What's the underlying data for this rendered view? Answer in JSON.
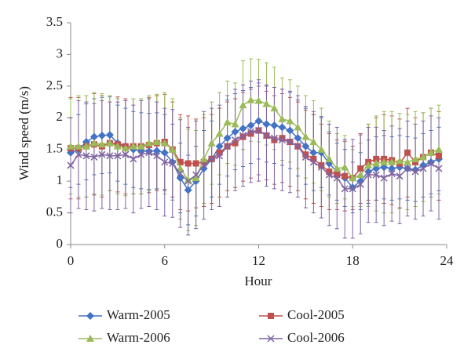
{
  "chart_data": {
    "type": "line",
    "xlabel": "Hour",
    "ylabel": "Wind speed (m/s)",
    "x": [
      0,
      0.5,
      1,
      1.5,
      2,
      2.5,
      3,
      3.5,
      4,
      4.5,
      5,
      5.5,
      6,
      6.5,
      7,
      7.5,
      8,
      8.5,
      9,
      9.5,
      10,
      10.5,
      11,
      11.5,
      12,
      12.5,
      13,
      13.5,
      14,
      14.5,
      15,
      15.5,
      16,
      16.5,
      17,
      17.5,
      18,
      18.5,
      19,
      19.5,
      20,
      20.5,
      21,
      21.5,
      22,
      22.5,
      23,
      23.5
    ],
    "xlim": [
      0,
      24
    ],
    "xticks": [
      0,
      6,
      12,
      18,
      24
    ],
    "ylim": [
      0,
      3.5
    ],
    "yticks": [
      0,
      0.5,
      1,
      1.5,
      2,
      2.5,
      3,
      3.5
    ],
    "grid": false,
    "legend": "bottom",
    "series": [
      {
        "name": "Warm-2005",
        "color": "#4472c4",
        "marker": "diamond",
        "values": [
          1.45,
          1.5,
          1.62,
          1.7,
          1.72,
          1.73,
          1.6,
          1.55,
          1.5,
          1.48,
          1.47,
          1.48,
          1.45,
          1.3,
          1.05,
          0.86,
          1.0,
          1.2,
          1.35,
          1.55,
          1.68,
          1.78,
          1.83,
          1.88,
          1.95,
          1.9,
          1.88,
          1.85,
          1.8,
          1.68,
          1.55,
          1.45,
          1.45,
          1.28,
          1.15,
          1.05,
          0.9,
          1.0,
          1.15,
          1.2,
          1.22,
          1.2,
          1.22,
          1.2,
          1.18,
          1.25,
          1.3,
          1.35
        ],
        "errors": [
          0.55,
          0.55,
          0.6,
          0.6,
          0.6,
          0.6,
          0.6,
          0.6,
          0.6,
          0.6,
          0.6,
          0.6,
          0.6,
          0.6,
          0.55,
          0.55,
          0.55,
          0.6,
          0.6,
          0.6,
          0.6,
          0.6,
          0.6,
          0.6,
          0.6,
          0.6,
          0.6,
          0.6,
          0.6,
          0.6,
          0.6,
          0.6,
          0.55,
          0.5,
          0.45,
          0.45,
          0.4,
          0.45,
          0.5,
          0.5,
          0.5,
          0.5,
          0.5,
          0.5,
          0.5,
          0.5,
          0.5,
          0.5
        ]
      },
      {
        "name": "Cool-2005",
        "color": "#c0504d",
        "marker": "square",
        "values": [
          1.52,
          1.52,
          1.55,
          1.58,
          1.55,
          1.6,
          1.58,
          1.55,
          1.55,
          1.55,
          1.57,
          1.6,
          1.62,
          1.5,
          1.3,
          1.28,
          1.28,
          1.3,
          1.35,
          1.45,
          1.55,
          1.6,
          1.7,
          1.75,
          1.8,
          1.72,
          1.65,
          1.68,
          1.62,
          1.55,
          1.42,
          1.35,
          1.25,
          1.15,
          1.1,
          1.08,
          1.05,
          1.2,
          1.3,
          1.35,
          1.35,
          1.33,
          1.28,
          1.45,
          1.3,
          1.38,
          1.45,
          1.4
        ],
        "errors": [
          0.8,
          0.8,
          0.8,
          0.8,
          0.8,
          0.75,
          0.75,
          0.75,
          0.75,
          0.75,
          0.75,
          0.75,
          0.75,
          0.75,
          0.75,
          0.75,
          0.7,
          0.7,
          0.7,
          0.7,
          0.7,
          0.7,
          0.7,
          0.7,
          0.7,
          0.7,
          0.7,
          0.7,
          0.7,
          0.7,
          0.7,
          0.7,
          0.65,
          0.6,
          0.55,
          0.55,
          0.5,
          0.55,
          0.6,
          0.65,
          0.7,
          0.7,
          0.7,
          0.7,
          0.7,
          0.7,
          0.7,
          0.7
        ]
      },
      {
        "name": "Warm-2006",
        "color": "#9bbb59",
        "marker": "triangle",
        "values": [
          1.55,
          1.55,
          1.55,
          1.6,
          1.58,
          1.6,
          1.55,
          1.52,
          1.55,
          1.55,
          1.6,
          1.62,
          1.6,
          1.5,
          1.2,
          1.02,
          1.05,
          1.35,
          1.6,
          1.75,
          1.93,
          1.9,
          2.2,
          2.28,
          2.27,
          2.22,
          2.15,
          1.98,
          1.95,
          1.85,
          1.7,
          1.62,
          1.5,
          1.35,
          1.2,
          1.22,
          1.05,
          1.1,
          1.25,
          1.28,
          1.3,
          1.3,
          1.32,
          1.3,
          1.35,
          1.38,
          1.45,
          1.5
        ],
        "errors": [
          0.75,
          0.8,
          0.8,
          0.8,
          0.8,
          0.75,
          0.75,
          0.75,
          0.75,
          0.75,
          0.75,
          0.75,
          0.8,
          0.8,
          0.8,
          0.8,
          0.75,
          0.7,
          0.65,
          0.65,
          0.65,
          0.65,
          0.7,
          0.65,
          0.65,
          0.65,
          0.65,
          0.65,
          0.65,
          0.65,
          0.65,
          0.65,
          0.65,
          0.6,
          0.55,
          0.5,
          0.45,
          0.5,
          0.65,
          0.75,
          0.8,
          0.8,
          0.75,
          0.75,
          0.75,
          0.7,
          0.7,
          0.7
        ]
      },
      {
        "name": "Cool-2006",
        "color": "#8064a2",
        "marker": "x",
        "values": [
          1.25,
          1.42,
          1.4,
          1.38,
          1.42,
          1.4,
          1.4,
          1.42,
          1.35,
          1.42,
          1.45,
          1.4,
          1.3,
          1.28,
          1.12,
          1.0,
          1.1,
          1.25,
          1.35,
          1.4,
          1.55,
          1.65,
          1.72,
          1.78,
          1.8,
          1.72,
          1.68,
          1.65,
          1.62,
          1.55,
          1.38,
          1.3,
          1.22,
          1.1,
          1.05,
          0.88,
          0.88,
          0.95,
          1.1,
          1.1,
          1.05,
          1.12,
          1.08,
          1.2,
          1.15,
          1.2,
          1.28,
          1.2
        ],
        "errors": [
          0.75,
          0.85,
          0.85,
          0.85,
          0.85,
          0.85,
          0.85,
          0.85,
          0.85,
          0.85,
          0.85,
          0.85,
          0.85,
          0.85,
          0.85,
          0.85,
          0.85,
          0.85,
          0.8,
          0.8,
          0.8,
          0.8,
          0.8,
          0.8,
          0.8,
          0.8,
          0.8,
          0.8,
          0.8,
          0.8,
          0.8,
          0.8,
          0.8,
          0.8,
          0.8,
          0.78,
          0.78,
          0.78,
          0.75,
          0.75,
          0.75,
          0.75,
          0.75,
          0.75,
          0.75,
          0.75,
          0.75,
          0.8
        ]
      }
    ]
  }
}
